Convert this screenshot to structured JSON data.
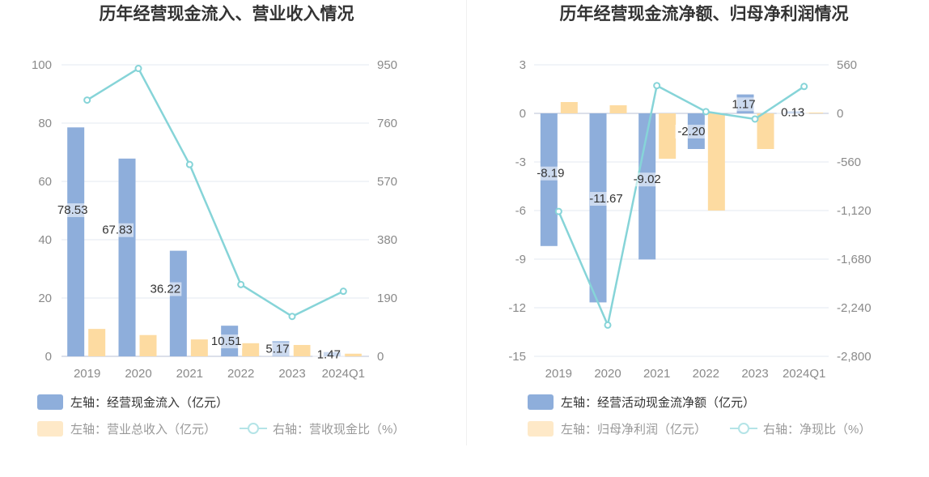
{
  "colors": {
    "bar_primary": "#8eaedb",
    "bar_secondary": "#fddba1",
    "line": "#86d4d8",
    "grid": "#e3e8f2",
    "legend_primary_text": "#333333",
    "legend_secondary_text": "#999999"
  },
  "chart_data": [
    {
      "type": "bar",
      "title": "历年经营现金流入、营业收入情况",
      "categories": [
        "2019",
        "2020",
        "2021",
        "2022",
        "2023",
        "2024Q1"
      ],
      "left_axis": {
        "ticks": [
          "0",
          "20",
          "40",
          "60",
          "80",
          "100"
        ],
        "range": [
          0,
          100
        ]
      },
      "right_axis": {
        "ticks": [
          "0",
          "190",
          "380",
          "570",
          "760",
          "950"
        ],
        "range": [
          0,
          950
        ]
      },
      "series": [
        {
          "name": "左轴：经营现金流入（亿元）",
          "kind": "bar",
          "axis": "left",
          "values": [
            78.53,
            67.83,
            36.22,
            10.51,
            5.17,
            1.47
          ],
          "labels": [
            "78.53",
            "67.83",
            "36.22",
            "10.51",
            "5.17",
            "1.47"
          ]
        },
        {
          "name": "左轴：营业总收入（亿元）",
          "kind": "bar",
          "axis": "left",
          "values": [
            9.4,
            7.3,
            5.8,
            4.5,
            3.9,
            0.9
          ]
        },
        {
          "name": "右轴：营收现金比（%）",
          "kind": "line",
          "axis": "right",
          "values": [
            835,
            938,
            625,
            234,
            130,
            212
          ]
        }
      ]
    },
    {
      "type": "bar",
      "title": "历年经营现金流净额、归母净利润情况",
      "categories": [
        "2019",
        "2020",
        "2021",
        "2022",
        "2023",
        "2024Q1"
      ],
      "left_axis": {
        "ticks": [
          "-15",
          "-12",
          "-9",
          "-6",
          "-3",
          "0",
          "3"
        ],
        "range": [
          -15,
          3
        ]
      },
      "right_axis": {
        "ticks": [
          "-2,800",
          "-2,240",
          "-1,680",
          "-1,120",
          "-560",
          "0",
          "560"
        ],
        "range": [
          -2800,
          560
        ]
      },
      "series": [
        {
          "name": "左轴：经营活动现金流净额（亿元）",
          "kind": "bar",
          "axis": "left",
          "values": [
            -8.19,
            -11.67,
            -9.02,
            -2.2,
            1.17,
            0.13
          ],
          "labels": [
            "-8.19",
            "-11.67",
            "-9.02",
            "-2.20",
            "1.17",
            "0.13"
          ]
        },
        {
          "name": "左轴：归母净利润（亿元）",
          "kind": "bar",
          "axis": "left",
          "values": [
            0.7,
            0.5,
            -2.8,
            -6.0,
            -2.2,
            0.05
          ]
        },
        {
          "name": "右轴：净现比（%）",
          "kind": "line",
          "axis": "right",
          "values": [
            -1130,
            -2440,
            320,
            20,
            -65,
            310
          ]
        }
      ]
    }
  ]
}
